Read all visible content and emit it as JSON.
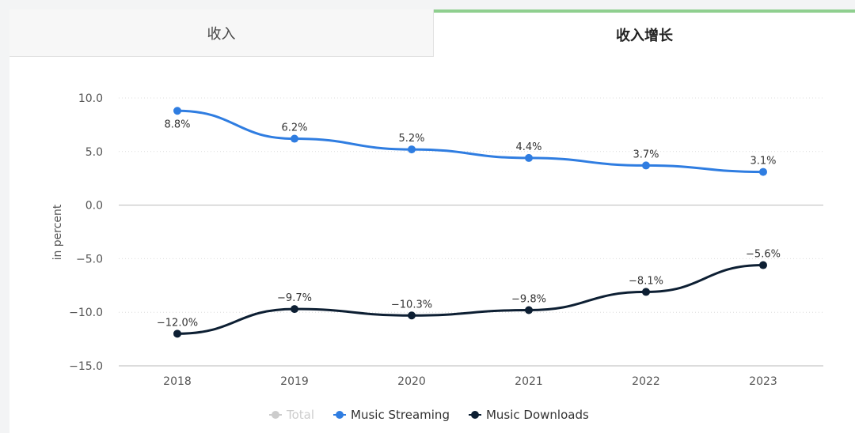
{
  "tabs": [
    {
      "label": "收入",
      "active": false
    },
    {
      "label": "收入增长",
      "active": true
    }
  ],
  "chart_data": {
    "type": "line",
    "title": "",
    "xlabel": "",
    "ylabel": "in percent",
    "x": [
      "2018",
      "2019",
      "2020",
      "2021",
      "2022",
      "2023"
    ],
    "ylim": [
      -15,
      10
    ],
    "yticks": [
      10,
      5,
      0,
      -5,
      -10,
      -15
    ],
    "ytick_labels": [
      "10.0",
      "5.0",
      "0.0",
      "−5.0",
      "−10.0",
      "−15.0"
    ],
    "grid": true,
    "legend_position": "bottom-center",
    "series": [
      {
        "name": "Music Streaming",
        "color": "#2f7de1",
        "values": [
          8.8,
          6.2,
          5.2,
          4.4,
          3.7,
          3.1
        ],
        "labels": [
          "8.8%",
          "6.2%",
          "5.2%",
          "4.4%",
          "3.7%",
          "3.1%"
        ]
      },
      {
        "name": "Music Downloads",
        "color": "#0d1f33",
        "values": [
          -12.0,
          -9.7,
          -10.3,
          -9.8,
          -8.1,
          -5.6
        ],
        "labels": [
          "−12.0%",
          "−9.7%",
          "−10.3%",
          "−9.8%",
          "−8.1%",
          "−5.6%"
        ]
      }
    ]
  },
  "legend": [
    {
      "label": "Total",
      "color": "#cccccc",
      "disabled": true
    },
    {
      "label": "Music Streaming",
      "color": "#2f7de1",
      "disabled": false
    },
    {
      "label": "Music Downloads",
      "color": "#0d1f33",
      "disabled": false
    }
  ]
}
